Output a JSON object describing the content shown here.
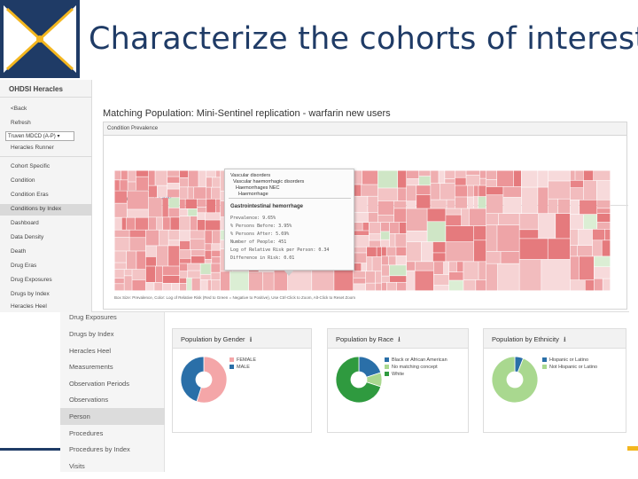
{
  "slide": {
    "title": "Characterize the cohorts of interest",
    "colors": {
      "title": "#1f3b66",
      "accent": "#f3b61f"
    }
  },
  "background": {
    "sidebar_items": [
      "Drug Exposures",
      "Drugs by Index",
      "Heracles Heel",
      "Measurements",
      "Observation Periods",
      "Observations",
      "Person",
      "Procedures",
      "Procedures by Index",
      "Visits"
    ],
    "active_item": "Person",
    "panels": [
      {
        "title": "Population by Gender",
        "legend": [
          "FEMALE",
          "MALE"
        ],
        "chart_data": {
          "type": "pie",
          "categories": [
            "FEMALE",
            "MALE"
          ],
          "values": [
            0.55,
            0.45
          ],
          "colors": [
            "#f4a6a8",
            "#2a6fa8"
          ]
        }
      },
      {
        "title": "Population by Race",
        "legend": [
          "Black or African American",
          "No matching concept",
          "White"
        ],
        "chart_data": {
          "type": "pie",
          "categories": [
            "Black or African American",
            "No matching concept",
            "White"
          ],
          "values": [
            0.2,
            0.1,
            0.7
          ],
          "colors": [
            "#2a6fa8",
            "#a9d88f",
            "#2f9a3f"
          ]
        }
      },
      {
        "title": "Population by Ethnicity",
        "legend": [
          "Hispanic or Latino",
          "Not Hispanic or Latino"
        ],
        "chart_data": {
          "type": "pie",
          "categories": [
            "Hispanic or Latino",
            "Not Hispanic or Latino"
          ],
          "values": [
            0.06,
            0.94
          ],
          "colors": [
            "#2a6fa8",
            "#a9d88f"
          ]
        }
      }
    ]
  },
  "foreground": {
    "app_title": "OHDSI Heracles",
    "back": "<Back",
    "refresh": "Refresh",
    "source_select": "Truven MDCD (A-P)",
    "heracles_runner": "Heracles Runner",
    "nav_items": [
      "Cohort Specific",
      "Condition",
      "Condition Eras",
      "Conditions by Index",
      "Dashboard",
      "Data Density",
      "Death",
      "Drug Eras",
      "Drug Exposures",
      "Drugs by Index",
      "Heracles Heel"
    ],
    "active_nav": "Conditions by Index",
    "report_title": "Matching Population: Mini-Sentinel replication - warfarin new users",
    "panel_title": "Condition Prevalence",
    "tabs": [
      "Treemap",
      "Table"
    ],
    "treemap_footer": "Box Size: Prevalence, Color: Log of Relative Risk (Red to Green = Negative to Positive), Use Ctrl-Click to Zoom, Alt-Click to Reset Zoom",
    "tooltip": {
      "path": [
        "Vascular disorders",
        "Vascular haemorrhagic disorders",
        "Haemorrhages NEC",
        "Haemorrhage"
      ],
      "name": "Gastrointestinal hemorrhage",
      "stats": [
        "Prevalence: 9.65%",
        "% Persons Before: 3.95%",
        "% Persons After: 5.69%",
        "Number of People: 451",
        "Log of Relative Risk per Person: 0.34",
        "Difference in Risk: 0.01"
      ]
    }
  }
}
